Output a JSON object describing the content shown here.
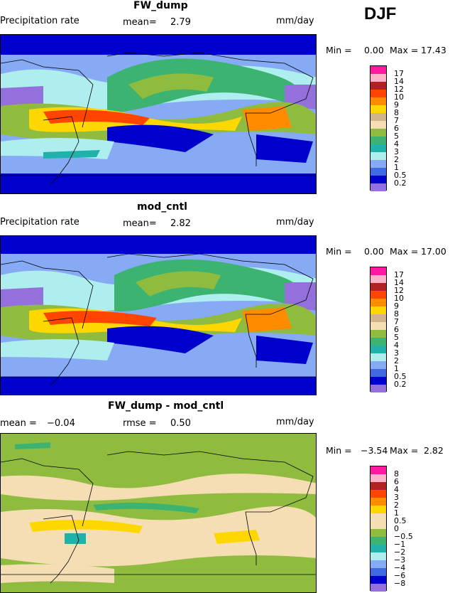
{
  "season": "DJF",
  "panels": [
    {
      "title": "FW_dump",
      "left_label": "Precipitation rate",
      "mid_label": "mean=",
      "mid_value": "2.79",
      "units": "mm/day",
      "min_label": "Min =",
      "min_value": "0.00",
      "max_label": "Max =",
      "max_value": "17.43",
      "levels": [
        "17",
        "14",
        "12",
        "10",
        "9",
        "8",
        "7",
        "6",
        "5",
        "4",
        "3",
        "2",
        "1",
        "0.5",
        "0.2"
      ],
      "colors": [
        "#ff1aa0",
        "#ffb3c8",
        "#b22222",
        "#ff4500",
        "#ff8c00",
        "#ffd700",
        "#d2b48c",
        "#f5deb3",
        "#8fbc3f",
        "#3cb371",
        "#20b2aa",
        "#afeeee",
        "#87aaf5",
        "#4169e1",
        "#0000cd",
        "#9370db"
      ]
    },
    {
      "title": "mod_cntl",
      "left_label": "Precipitation rate",
      "mid_label": "mean=",
      "mid_value": "2.82",
      "units": "mm/day",
      "min_label": "Min =",
      "min_value": "0.00",
      "max_label": "Max =",
      "max_value": "17.00",
      "levels": [
        "17",
        "14",
        "12",
        "10",
        "9",
        "8",
        "7",
        "6",
        "5",
        "4",
        "3",
        "2",
        "1",
        "0.5",
        "0.2"
      ],
      "colors": [
        "#ff1aa0",
        "#ffb3c8",
        "#b22222",
        "#ff4500",
        "#ff8c00",
        "#ffd700",
        "#d2b48c",
        "#f5deb3",
        "#8fbc3f",
        "#3cb371",
        "#20b2aa",
        "#afeeee",
        "#87aaf5",
        "#4169e1",
        "#0000cd",
        "#9370db"
      ]
    },
    {
      "title": "FW_dump - mod_cntl",
      "left_label": "mean = ",
      "left_value": "−0.04",
      "mid_label": "rmse =",
      "mid_value": "0.50",
      "units": "mm/day",
      "min_label": "Min =",
      "min_value": "−3.54",
      "max_label": "Max =",
      "max_value": "2.82",
      "levels": [
        "8",
        "6",
        "4",
        "3",
        "2",
        "1",
        "0.5",
        "0",
        "−0.5",
        "−1",
        "−2",
        "−3",
        "−4",
        "−6",
        "−8"
      ],
      "colors": [
        "#ff1aa0",
        "#ffb3c8",
        "#b22222",
        "#ff4500",
        "#ff8c00",
        "#ffd700",
        "#f5deb3",
        "#f5deb3",
        "#8fbc3f",
        "#3cb371",
        "#20b2aa",
        "#afeeee",
        "#87aaf5",
        "#4169e1",
        "#0000cd",
        "#9370db"
      ]
    }
  ]
}
